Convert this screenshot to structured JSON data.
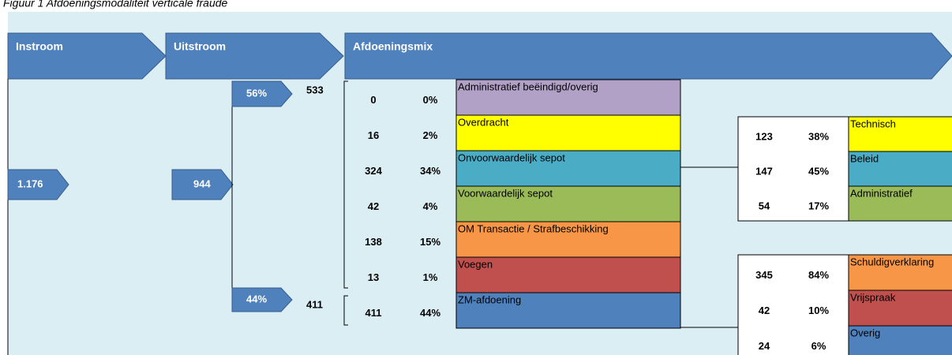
{
  "caption": "Figuur 1 Afdoeningsmodaliteit verticale fraude",
  "headers": [
    "Instroom",
    "Uitstroom",
    "Afdoeningsmix"
  ],
  "inflow": "1.176",
  "outflow": "944",
  "branches": [
    {
      "pct": "56%",
      "count": "533"
    },
    {
      "pct": "44%",
      "count": "411"
    }
  ],
  "mix": [
    {
      "count": "0",
      "pct": "0%",
      "label": "Administratief beëindigd/overig"
    },
    {
      "count": "16",
      "pct": "2%",
      "label": "Overdracht"
    },
    {
      "count": "324",
      "pct": "34%",
      "label": "Onvoorwaardelijk sepot"
    },
    {
      "count": "42",
      "pct": "4%",
      "label": "Voorwaardelijk sepot"
    },
    {
      "count": "138",
      "pct": "15%",
      "label": "OM Transactie / Strafbeschikking"
    },
    {
      "count": "13",
      "pct": "1%",
      "label": "Voegen"
    },
    {
      "count": "411",
      "pct": "44%",
      "label": "ZM-afdoening"
    }
  ],
  "sepot_breakdown": [
    {
      "count": "123",
      "pct": "38%",
      "label": "Technisch"
    },
    {
      "count": "147",
      "pct": "45%",
      "label": "Beleid"
    },
    {
      "count": "54",
      "pct": "17%",
      "label": "Administratief"
    }
  ],
  "zm_breakdown": [
    {
      "count": "345",
      "pct": "84%",
      "label": "Schuldigverklaring"
    },
    {
      "count": "42",
      "pct": "10%",
      "label": "Vrijspraak"
    },
    {
      "count": "24",
      "pct": "6%",
      "label": "Overig"
    }
  ]
}
